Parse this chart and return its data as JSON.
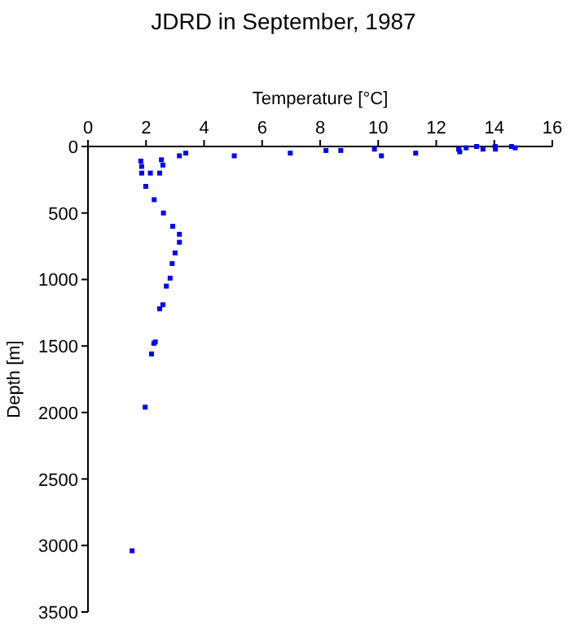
{
  "chart_data": {
    "type": "scatter",
    "title": "JDRD in September, 1987",
    "xlabel": "Temperature [°C]",
    "ylabel": "Depth [m]",
    "xlim": [
      0,
      16
    ],
    "xticks": [
      0,
      2,
      4,
      6,
      8,
      10,
      12,
      14,
      16
    ],
    "ylim": [
      3500,
      0
    ],
    "yticks": [
      0,
      500,
      1000,
      1500,
      2000,
      2500,
      3000,
      3500
    ],
    "grid": false,
    "marker": "square",
    "series": [
      {
        "color": "#0000ff",
        "x": [
          1.82,
          1.85,
          1.85,
          2.15,
          2.53,
          2.58,
          2.47,
          1.99,
          2.28,
          2.6,
          2.92,
          3.15,
          3.15,
          3.0,
          2.9,
          2.83,
          2.7,
          3.15,
          3.37,
          5.04,
          6.97,
          8.2,
          8.71,
          9.87,
          10.11,
          11.29,
          12.77,
          12.81,
          13.03,
          13.39,
          13.61,
          14.03,
          14.04,
          14.59,
          14.72,
          2.47,
          2.58,
          2.27,
          2.32,
          2.19,
          1.97,
          1.52
        ],
        "values": [
          110,
          150,
          200,
          200,
          100,
          140,
          200,
          300,
          400,
          500,
          600,
          660,
          720,
          800,
          880,
          990,
          1050,
          70,
          50,
          70,
          50,
          30,
          30,
          20,
          70,
          50,
          20,
          40,
          10,
          0,
          20,
          0,
          20,
          0,
          10,
          1220,
          1190,
          1480,
          1470,
          1560,
          1960,
          3040
        ]
      }
    ]
  }
}
